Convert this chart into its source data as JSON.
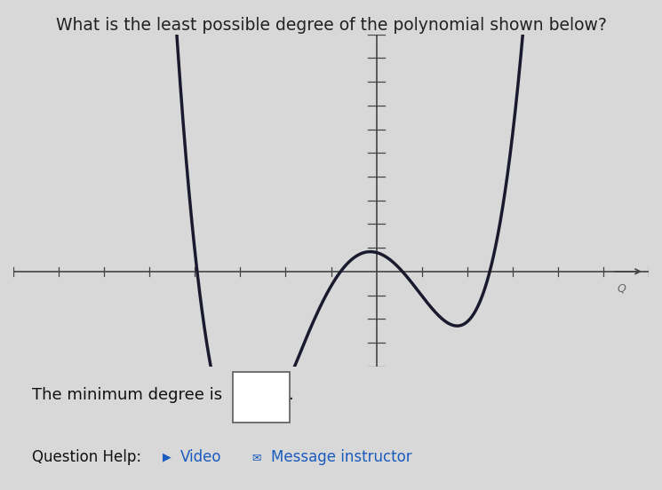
{
  "title": "What is the least possible degree of the polynomial shown below?",
  "title_fontsize": 13.5,
  "title_color": "#222222",
  "background_color": "#d8d8d8",
  "plot_bg_color": "#d8d8d8",
  "curve_color": "#1a1a2e",
  "curve_linewidth": 2.5,
  "axis_color": "#444444",
  "tick_color": "#444444",
  "xlim": [
    -8,
    6
  ],
  "ylim": [
    -4,
    10
  ],
  "poly_a": 0.18,
  "poly_b": 0.3,
  "poly_c": -1.8,
  "poly_d": -0.5,
  "poly_e": 0.8,
  "x_start": -6.5,
  "x_end": 4.2,
  "bottom_text": "The minimum degree is",
  "bottom_text2": "Question Help:",
  "video_text": "Video",
  "msg_text": "Message instructor",
  "text_color": "#111111",
  "link_color": "#1a5bbf",
  "yaxis_x": 0,
  "xaxis_y": 0
}
